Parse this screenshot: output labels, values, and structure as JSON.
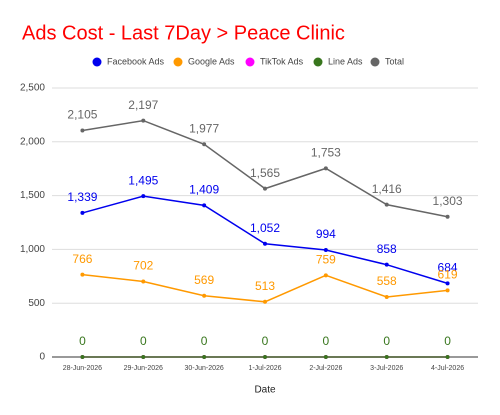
{
  "chart_data": {
    "type": "line",
    "title": "Ads Cost - Last 7Day > Peace Clinic",
    "xlabel": "Date",
    "categories": [
      "28-Jun-2026",
      "29-Jun-2026",
      "30-Jun-2026",
      "1-Jul-2026",
      "2-Jul-2026",
      "3-Jul-2026",
      "4-Jul-2026"
    ],
    "series": [
      {
        "name": "Facebook Ads",
        "color": "#0000ee",
        "values": [
          1339,
          1495,
          1409,
          1052,
          994,
          858,
          684
        ],
        "value_labels": [
          "1,339",
          "1,495",
          "1,409",
          "1,052",
          "994",
          "858",
          "684"
        ]
      },
      {
        "name": "Google Ads",
        "color": "#ff9900",
        "values": [
          766,
          702,
          569,
          513,
          759,
          558,
          619
        ],
        "value_labels": [
          "766",
          "702",
          "569",
          "513",
          "759",
          "558",
          "619"
        ]
      },
      {
        "name": "TikTok Ads",
        "color": "#ff00ff",
        "values": [
          0,
          0,
          0,
          0,
          0,
          0,
          0
        ]
      },
      {
        "name": "Line Ads",
        "color": "#38761d",
        "values": [
          0,
          0,
          0,
          0,
          0,
          0,
          0
        ],
        "value_labels": [
          "0",
          "0",
          "0",
          "0",
          "0",
          "0",
          "0"
        ]
      },
      {
        "name": "Total",
        "color": "#666666",
        "values": [
          2105,
          2197,
          1977,
          1565,
          1753,
          1416,
          1303
        ],
        "value_labels": [
          "2,105",
          "2,197",
          "1,977",
          "1,565",
          "1,753",
          "1,416",
          "1,303"
        ]
      }
    ],
    "ylim": [
      0,
      2500
    ],
    "yticks": [
      0,
      500,
      {
        "value": 1000,
        "label": "1,000"
      },
      {
        "value": 1500,
        "label": "1,500"
      },
      {
        "value": 2000,
        "label": "2,000"
      },
      {
        "value": 2500,
        "label": "2,500"
      }
    ],
    "grid": true,
    "legend": "top"
  }
}
